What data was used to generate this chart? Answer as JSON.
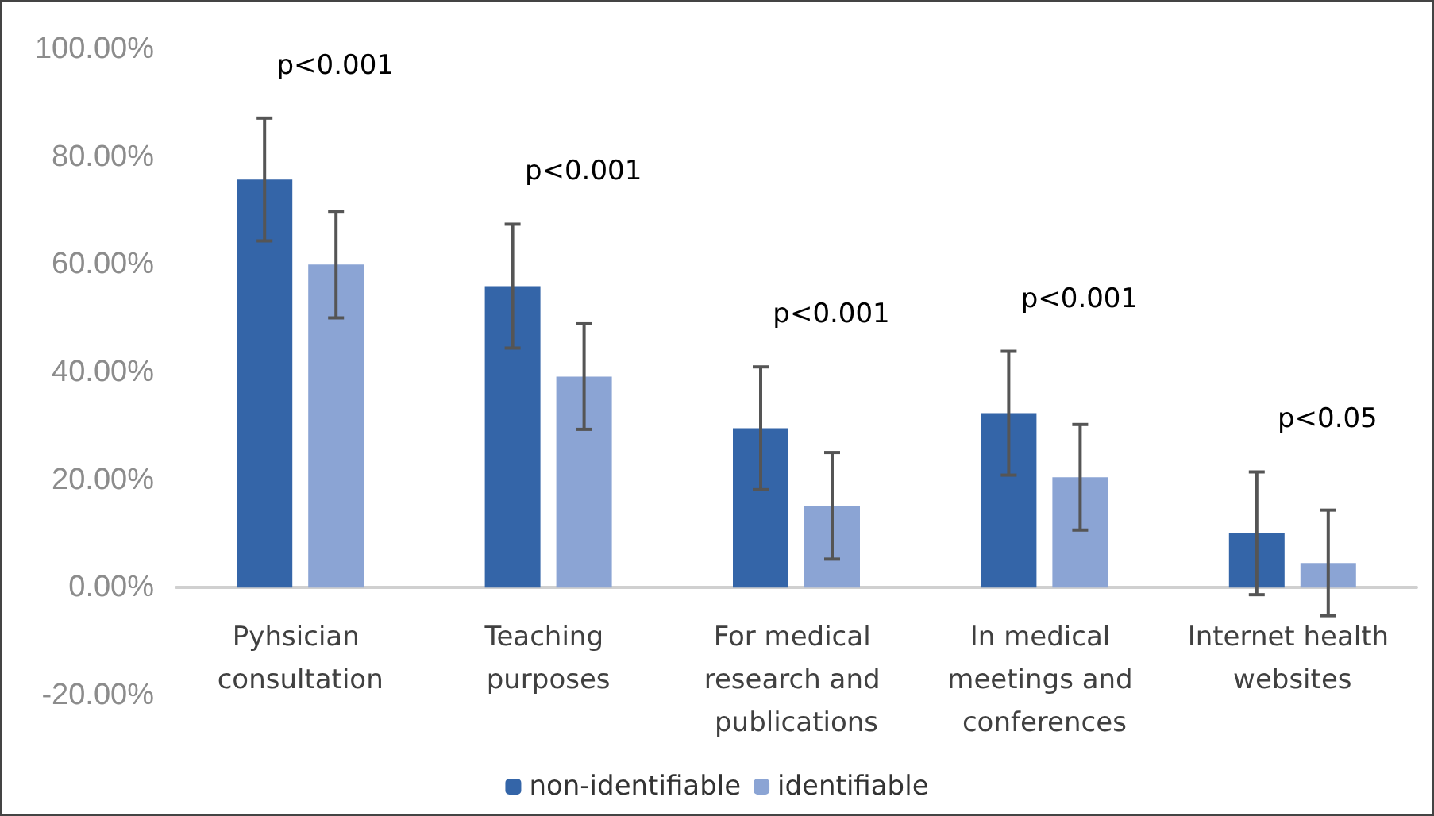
{
  "chart_data": {
    "type": "bar",
    "categories": [
      "Pyhsician consultation",
      "Teaching purposes",
      "For medical research and publications",
      "In medical meetings and conferences",
      "Internet health websites"
    ],
    "series": [
      {
        "name": "non-identifiable",
        "color": "#3465a8",
        "values": [
          75.8,
          56,
          29.6,
          32.4,
          10.1
        ],
        "errors": [
          11.4,
          11.5,
          11.4,
          11.5,
          11.4
        ]
      },
      {
        "name": "identifiable",
        "color": "#8ba4d4",
        "values": [
          60,
          39.2,
          15.2,
          20.5,
          4.6
        ],
        "errors": [
          9.9,
          9.8,
          9.9,
          9.8,
          9.8
        ]
      }
    ],
    "ylim": [
      -20,
      100
    ],
    "yticks": [
      {
        "value": -20,
        "label": "-20.00%"
      },
      {
        "value": 0,
        "label": "0.00%"
      },
      {
        "value": 20,
        "label": "20.00%"
      },
      {
        "value": 40,
        "label": "40.00%"
      },
      {
        "value": 60,
        "label": "60.00%"
      },
      {
        "value": 80,
        "label": "80.00%"
      },
      {
        "value": 100,
        "label": "100.00%"
      }
    ],
    "annotations": [
      "p<0.001",
      "p<0.001",
      "p<0.001",
      "p<0.001",
      "p<0.05"
    ],
    "grid": false,
    "legend": "bottom"
  }
}
